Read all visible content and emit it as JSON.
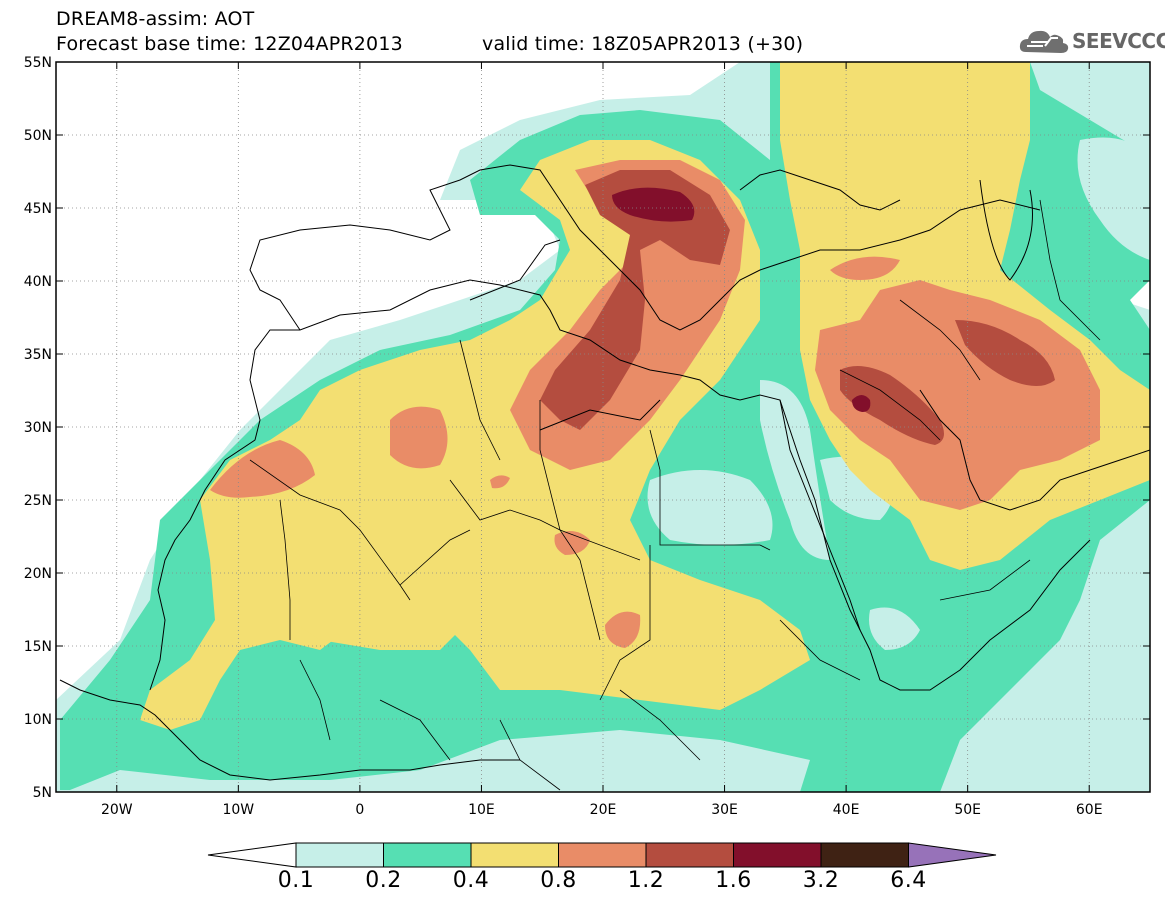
{
  "header": {
    "title": "DREAM8-assim: AOT",
    "base_time": "Forecast base time: 12Z04APR2013",
    "valid_time": "valid time: 18Z05APR2013 (+30)"
  },
  "logo": {
    "text": "SEEVCCC",
    "icon": "cloud-icon"
  },
  "map": {
    "lon_range": [
      -25,
      65
    ],
    "lat_range": [
      5,
      55
    ],
    "lat_labels": [
      "55N",
      "50N",
      "45N",
      "40N",
      "35N",
      "30N",
      "25N",
      "20N",
      "15N",
      "10N",
      "5N"
    ],
    "lon_labels": [
      "20W",
      "10W",
      "0",
      "10E",
      "20E",
      "30E",
      "40E",
      "50E",
      "60E"
    ],
    "grid": "dotted"
  },
  "colorbar": {
    "labels": [
      "0.1",
      "0.2",
      "0.4",
      "0.8",
      "1.2",
      "1.6",
      "3.2",
      "6.4"
    ],
    "colors": {
      "below": "#ffffff",
      "c1": "#c6efe8",
      "c2": "#56dfb3",
      "c3": "#f3df72",
      "c4": "#e98c67",
      "c5": "#b44d3f",
      "c6": "#820f2b",
      "c7": "#3f2214",
      "above": "#9772b9"
    }
  }
}
